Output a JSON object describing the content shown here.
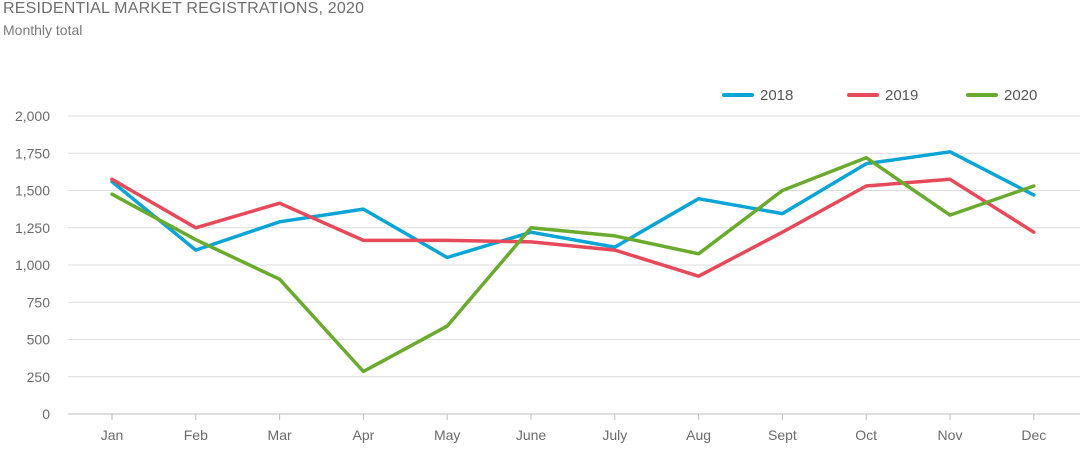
{
  "chart_data": {
    "type": "line",
    "title": "RESIDENTIAL MARKET REGISTRATIONS, 2020",
    "subtitle": "Monthly total",
    "categories": [
      "Jan",
      "Feb",
      "Mar",
      "Apr",
      "May",
      "June",
      "July",
      "Aug",
      "Sept",
      "Oct",
      "Nov",
      "Dec"
    ],
    "y_ticks": [
      "0",
      "250",
      "500",
      "750",
      "1,000",
      "1,250",
      "1,500",
      "1,750",
      "2,000"
    ],
    "ylim": [
      0,
      2000
    ],
    "grid": true,
    "legend_position": "top-right",
    "series": [
      {
        "name": "2018",
        "color": "#0aa5d6",
        "values": [
          1560,
          1100,
          1290,
          1375,
          1050,
          1220,
          1120,
          1445,
          1345,
          1680,
          1760,
          1470
        ]
      },
      {
        "name": "2019",
        "color": "#e64a5a",
        "values": [
          1575,
          1250,
          1415,
          1165,
          1165,
          1155,
          1100,
          925,
          1220,
          1530,
          1575,
          1220
        ]
      },
      {
        "name": "2020",
        "color": "#6aaa2e",
        "values": [
          1475,
          1170,
          905,
          285,
          590,
          1250,
          1195,
          1075,
          1500,
          1720,
          1335,
          1530
        ]
      }
    ]
  }
}
